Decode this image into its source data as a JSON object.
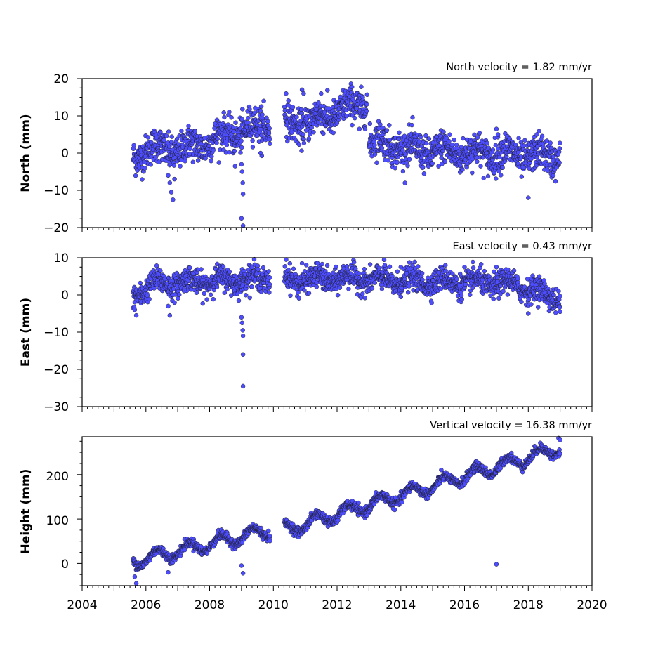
{
  "chart_data": [
    {
      "type": "scatter",
      "annotation": "North velocity = 1.82 mm/yr",
      "ylabel": "North (mm)",
      "xlim": [
        2004,
        2020
      ],
      "ylim": [
        -20,
        20
      ],
      "xticks": [
        "2004",
        "2006",
        "2008",
        "2010",
        "2012",
        "2014",
        "2016",
        "2018",
        "2020"
      ],
      "yticks": [
        "−20",
        "−10",
        "0",
        "10",
        "20"
      ],
      "ytick_values": [
        -20,
        -10,
        0,
        10,
        20
      ],
      "marker_color": "#4d4dff",
      "segments": [
        {
          "x0": 2005.6,
          "x1": 2006.0,
          "y0": -1,
          "y1": 1
        },
        {
          "x0": 2006.0,
          "x1": 2007.0,
          "y0": 1,
          "y1": 1
        },
        {
          "x0": 2007.0,
          "x1": 2009.0,
          "y0": 0.5,
          "y1": 6
        },
        {
          "x0": 2009.0,
          "x1": 2009.9,
          "y0": 6,
          "y1": 8
        },
        {
          "x0": 2010.35,
          "x1": 2011.3,
          "y0": 8,
          "y1": 8
        },
        {
          "x0": 2011.3,
          "x1": 2012.95,
          "y0": 9,
          "y1": 14
        },
        {
          "x0": 2013.0,
          "x1": 2014.0,
          "y0": 3,
          "y1": 2
        },
        {
          "x0": 2014.0,
          "x1": 2019.0,
          "y0": 1,
          "y1": -1
        }
      ],
      "outliers": [
        [
          2006.7,
          -6
        ],
        [
          2006.75,
          -8
        ],
        [
          2006.8,
          -10.5
        ],
        [
          2006.85,
          -12.5
        ],
        [
          2006.9,
          -7
        ],
        [
          2009.0,
          -3
        ],
        [
          2009.02,
          -5
        ],
        [
          2009.04,
          -8
        ],
        [
          2009.05,
          -11
        ],
        [
          2009.0,
          -17.5
        ],
        [
          2009.05,
          -19.5
        ],
        [
          2008.8,
          -3.5
        ],
        [
          2009.6,
          0
        ],
        [
          2009.7,
          14
        ],
        [
          2010.4,
          16
        ],
        [
          2010.9,
          17
        ],
        [
          2010.95,
          16
        ],
        [
          2011.5,
          16
        ],
        [
          2012.7,
          6.5
        ],
        [
          2013.95,
          5.5
        ],
        [
          2017.0,
          6.5
        ],
        [
          2017.05,
          5
        ],
        [
          2018.0,
          -12
        ]
      ],
      "scatter": 2.3,
      "seasonal_amplitude": 1.5
    },
    {
      "type": "scatter",
      "annotation": "East velocity = 0.43 mm/yr",
      "ylabel": "East (mm)",
      "xlim": [
        2004,
        2020
      ],
      "ylim": [
        -30,
        10
      ],
      "xticks": [
        "2004",
        "2006",
        "2008",
        "2010",
        "2012",
        "2014",
        "2016",
        "2018",
        "2020"
      ],
      "yticks": [
        "−30",
        "−20",
        "−10",
        "0",
        "10"
      ],
      "ytick_values": [
        -30,
        -20,
        -10,
        0,
        10
      ],
      "marker_color": "#4d4dff",
      "segments": [
        {
          "x0": 2005.6,
          "x1": 2006.3,
          "y0": 0,
          "y1": 3
        },
        {
          "x0": 2006.3,
          "x1": 2009.9,
          "y0": 3,
          "y1": 4.5
        },
        {
          "x0": 2010.35,
          "x1": 2013.0,
          "y0": 4,
          "y1": 4.5
        },
        {
          "x0": 2013.0,
          "x1": 2017.5,
          "y0": 4,
          "y1": 3
        },
        {
          "x0": 2017.5,
          "x1": 2019.0,
          "y0": 3,
          "y1": -1
        }
      ],
      "outliers": [
        [
          2005.65,
          -4
        ],
        [
          2005.7,
          -5.5
        ],
        [
          2006.7,
          -3
        ],
        [
          2006.75,
          -5.5
        ],
        [
          2009.0,
          -6
        ],
        [
          2009.02,
          -7.5
        ],
        [
          2009.04,
          -9.5
        ],
        [
          2009.05,
          -11
        ],
        [
          2009.05,
          -16
        ],
        [
          2009.05,
          -24.5
        ],
        [
          2010.4,
          9.5
        ],
        [
          2010.9,
          8.5
        ],
        [
          2013.5,
          8
        ],
        [
          2014.0,
          7.5
        ],
        [
          2016.0,
          7.5
        ],
        [
          2017.0,
          7.5
        ],
        [
          2018.0,
          -5
        ],
        [
          2019.0,
          -4.5
        ]
      ],
      "scatter": 1.6,
      "seasonal_amplitude": 1.2
    },
    {
      "type": "scatter",
      "annotation": "Vertical velocity = 16.38 mm/yr",
      "ylabel": "Height (mm)",
      "xlim": [
        2004,
        2020
      ],
      "ylim": [
        -50,
        285
      ],
      "xticks": [
        "2004",
        "2006",
        "2008",
        "2010",
        "2012",
        "2014",
        "2016",
        "2018",
        "2020"
      ],
      "yticks": [
        "0",
        "100",
        "200"
      ],
      "ytick_values": [
        0,
        100,
        200
      ],
      "marker_color": "#4d4dff",
      "segments": [
        {
          "x0": 2005.6,
          "x1": 2009.9,
          "y0": 5,
          "y1": 75
        },
        {
          "x0": 2010.35,
          "x1": 2019.0,
          "y0": 75,
          "y1": 260
        }
      ],
      "outliers": [
        [
          2005.65,
          -30
        ],
        [
          2005.7,
          -45
        ],
        [
          2006.7,
          -20
        ],
        [
          2009.0,
          -5
        ],
        [
          2009.05,
          -22
        ],
        [
          2017.0,
          -2
        ],
        [
          2018.95,
          282
        ],
        [
          2019.0,
          278
        ]
      ],
      "scatter": 5,
      "seasonal_amplitude": 14
    }
  ]
}
